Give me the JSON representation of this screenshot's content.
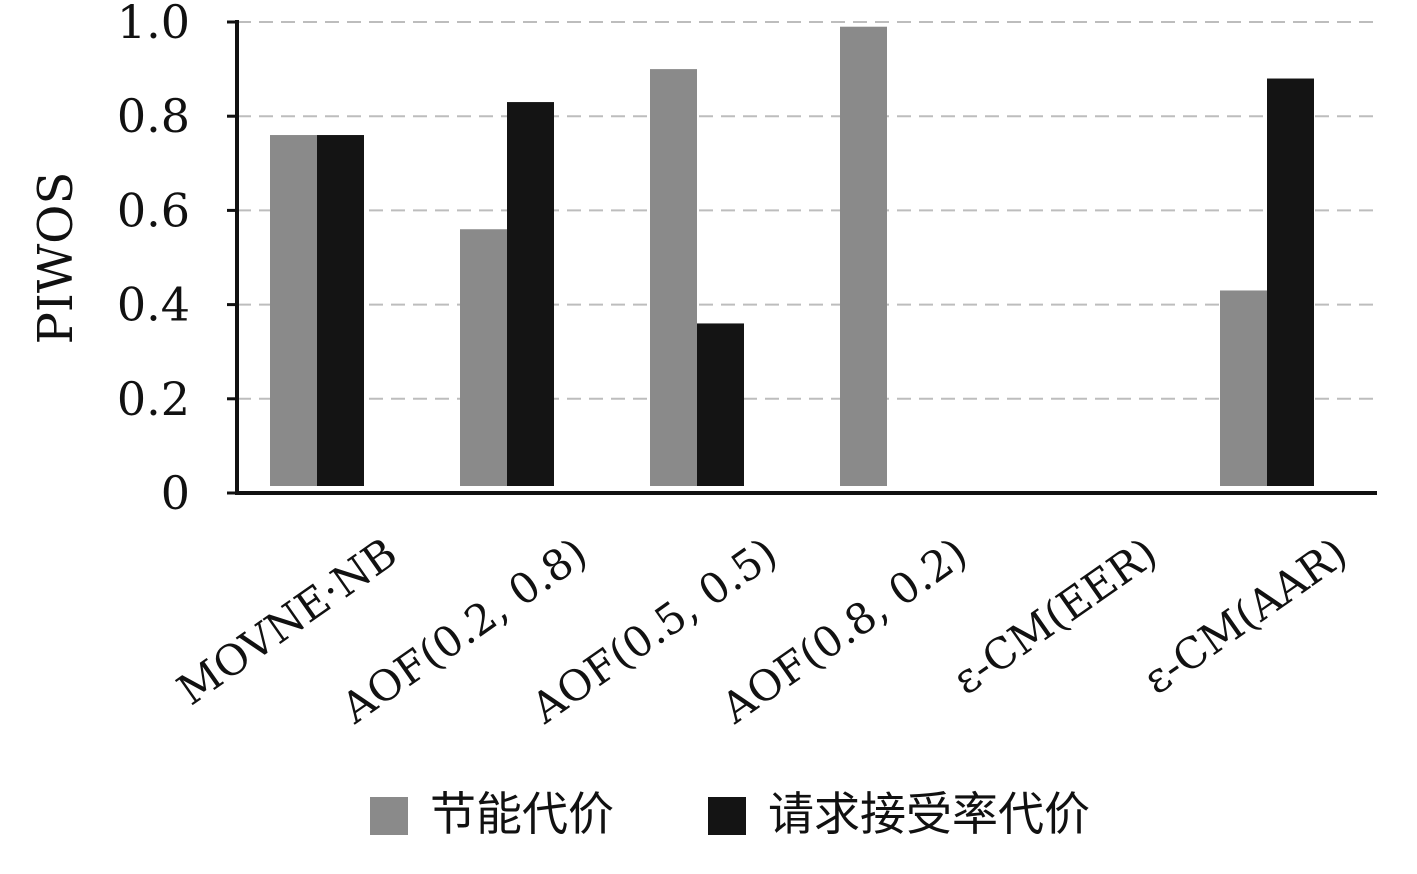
{
  "chart_data": {
    "type": "bar",
    "title": "",
    "xlabel": "",
    "ylabel": "PIWOS",
    "ylim": [
      0,
      1.0
    ],
    "yticks": [
      {
        "value": 0,
        "label": "0"
      },
      {
        "value": 0.2,
        "label": "0.2"
      },
      {
        "value": 0.4,
        "label": "0.4"
      },
      {
        "value": 0.6,
        "label": "0.6"
      },
      {
        "value": 0.8,
        "label": "0.8"
      },
      {
        "value": 1.0,
        "label": "1.0"
      }
    ],
    "grid": true,
    "legend_position": "bottom",
    "categories": [
      "MOVNE·NB",
      "AOF(0.2, 0.8)",
      "AOF(0.5, 0.5)",
      "AOF(0.8, 0.2)",
      "ε-CM(EER)",
      "ε-CM(AAR)"
    ],
    "series": [
      {
        "name": "节能代价",
        "color": "#8a8a8a",
        "values": [
          0.76,
          0.56,
          0.9,
          0.99,
          0,
          0.43
        ]
      },
      {
        "name": "请求接受率代价",
        "color": "#141414",
        "values": [
          0.76,
          0.83,
          0.36,
          0,
          0,
          0.88
        ]
      }
    ]
  }
}
